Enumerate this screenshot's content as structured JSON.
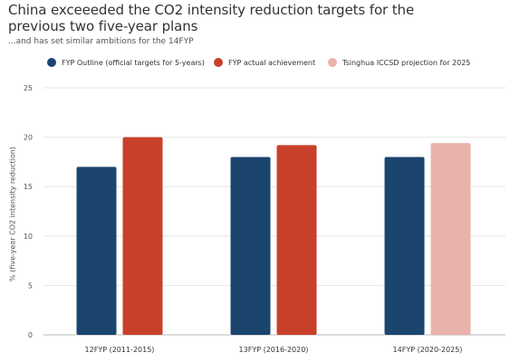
{
  "title": "China exceeeded the CO2 intensity reduction targets for the previous two five-year plans",
  "subtitle": "...and has set similar ambitions for the 14FYP",
  "legend": [
    {
      "label": "FYP Outline (official targets for 5-years)",
      "color": "#1b456f"
    },
    {
      "label": "FYP actual achievement",
      "color": "#c8402a"
    },
    {
      "label": "Tsinghua ICCSD projection for 2025",
      "color": "#e8b3ab"
    }
  ],
  "chart_data": {
    "type": "bar",
    "title": "China exceeeded the CO2 intensity reduction targets for the previous two five-year plans",
    "subtitle": "...and has set similar ambitions for the 14FYP",
    "xlabel": "",
    "ylabel": "% (five-year CO2 intensity reduction)",
    "categories": [
      "12FYP (2011-2015)",
      "13FYP (2016-2020)",
      "14FYP (2020-2025)"
    ],
    "ylim": [
      0,
      25
    ],
    "yticks": [
      0,
      5,
      10,
      15,
      20,
      25
    ],
    "grid": true,
    "legend_position": "top",
    "series": [
      {
        "name": "FYP Outline (official targets for 5-years)",
        "values": [
          17,
          18,
          18
        ],
        "color": "#1b456f"
      },
      {
        "name": "FYP actual achievement",
        "values": [
          20,
          19.2,
          null
        ],
        "color": "#c8402a"
      },
      {
        "name": "Tsinghua ICCSD projection for 2025",
        "values": [
          null,
          null,
          19.4
        ],
        "color": "#e8b3ab"
      }
    ]
  }
}
